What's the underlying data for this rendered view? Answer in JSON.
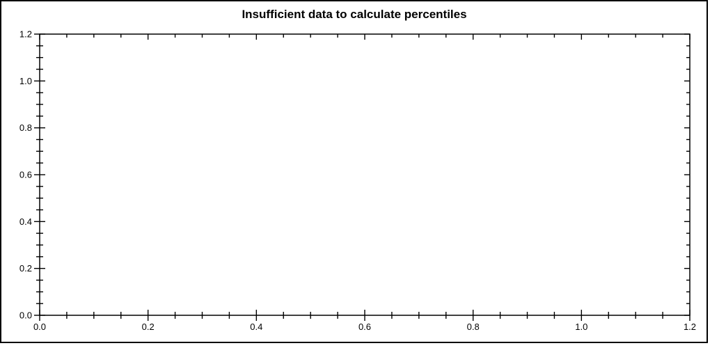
{
  "window": {
    "background": "#ffffff",
    "border_color": "#000000"
  },
  "chart_data": {
    "type": "line",
    "title": "Insufficient data to calculate percentiles",
    "series": [],
    "xlabel": "",
    "ylabel": "",
    "xlim": [
      0.0,
      1.2
    ],
    "ylim": [
      0.0,
      1.2
    ],
    "x_major_ticks": [
      0.0,
      0.2,
      0.4,
      0.6,
      0.8,
      1.0,
      1.2
    ],
    "x_tick_labels": [
      "0.0",
      "0.2",
      "0.4",
      "0.6",
      "0.8",
      "1.0",
      "1.2"
    ],
    "y_major_ticks": [
      0.0,
      0.2,
      0.4,
      0.6,
      0.8,
      1.0,
      1.2
    ],
    "y_tick_labels": [
      "0.0",
      "0.2",
      "0.4",
      "0.6",
      "0.8",
      "1.0",
      "1.2"
    ],
    "minor_tick_interval": 0.05,
    "grid": false,
    "legend_position": "none",
    "axis_color": "#000000",
    "text_color": "#000000"
  }
}
